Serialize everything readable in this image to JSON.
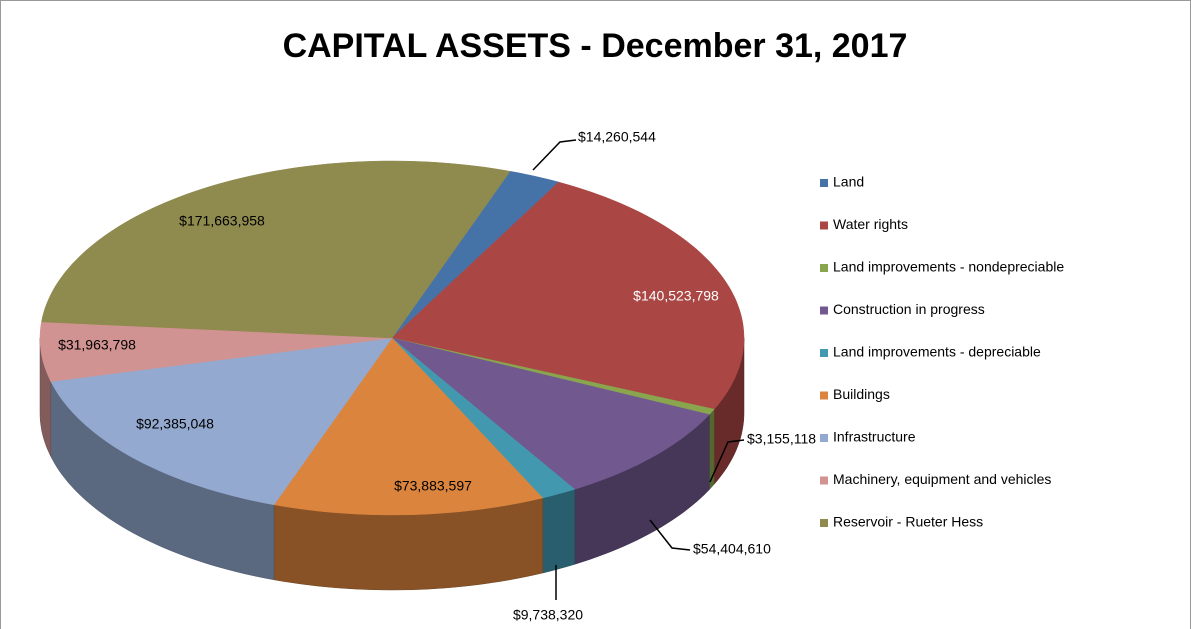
{
  "chart_data": {
    "type": "pie3d",
    "title": "CAPITAL ASSETS - December 31, 2017",
    "categories": [
      "Land",
      "Water rights",
      "Land improvements - nondepreciable",
      "Construction in progress",
      "Land improvements - depreciable",
      "Buildings",
      "Infrastructure",
      "Machinery, equipment and vehicles",
      "Reservoir - Rueter Hess"
    ],
    "values": [
      14260544,
      140523798,
      3155118,
      54404610,
      9738320,
      73883597,
      92385048,
      31963798,
      171663958
    ],
    "value_labels": [
      "$14,260,544",
      "$140,523,798",
      "$3,155,118",
      "$54,404,610",
      "$9,738,320",
      "$73,883,597",
      "$92,385,048",
      "$31,963,798",
      "$171,663,958"
    ],
    "colors": [
      "#4572a7",
      "#aa4643",
      "#89a54e",
      "#71588f",
      "#4198af",
      "#db843d",
      "#93a9cf",
      "#d19392",
      "#8f8a4e"
    ],
    "legend": "right"
  }
}
